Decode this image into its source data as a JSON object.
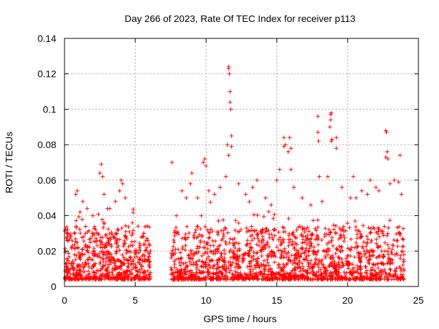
{
  "chart_data": {
    "type": "scatter",
    "title": "Day 266 of 2023, Rate Of TEC Index for receiver p113",
    "xlabel": "GPS time / hours",
    "ylabel": "ROTI / TECUs",
    "xlim": [
      0,
      25
    ],
    "ylim": [
      0,
      0.14
    ],
    "xticks": [
      0,
      5,
      10,
      15,
      20,
      25
    ],
    "xtick_labels": [
      "0",
      "5",
      "10",
      "15",
      "20",
      "25"
    ],
    "yticks": [
      0,
      0.02,
      0.04,
      0.06,
      0.08,
      0.1,
      0.12,
      0.14
    ],
    "ytick_labels": [
      "0",
      "0.02",
      "0.04",
      "0.06",
      "0.08",
      "0.1",
      "0.12",
      "0.14"
    ],
    "grid": true,
    "marker": "+",
    "color": "#ff0000",
    "data_gap_hours": [
      6.1,
      7.5
    ],
    "series": [
      {
        "name": "ROTI",
        "points": [
          [
            0.2,
            0.028
          ],
          [
            0.5,
            0.022
          ],
          [
            0.8,
            0.052
          ],
          [
            0.9,
            0.054
          ],
          [
            1.1,
            0.042
          ],
          [
            1.3,
            0.048
          ],
          [
            1.6,
            0.044
          ],
          [
            2.0,
            0.04
          ],
          [
            2.5,
            0.064
          ],
          [
            2.6,
            0.069
          ],
          [
            2.7,
            0.062
          ],
          [
            2.8,
            0.052
          ],
          [
            3.2,
            0.044
          ],
          [
            3.6,
            0.048
          ],
          [
            3.9,
            0.054
          ],
          [
            4.0,
            0.06
          ],
          [
            4.1,
            0.058
          ],
          [
            4.3,
            0.05
          ],
          [
            4.8,
            0.036
          ],
          [
            5.2,
            0.034
          ],
          [
            5.6,
            0.03
          ],
          [
            5.9,
            0.026
          ],
          [
            7.6,
            0.07
          ],
          [
            7.9,
            0.04
          ],
          [
            8.3,
            0.054
          ],
          [
            8.6,
            0.05
          ],
          [
            8.9,
            0.058
          ],
          [
            9.0,
            0.064
          ],
          [
            9.4,
            0.05
          ],
          [
            9.8,
            0.07
          ],
          [
            9.9,
            0.072
          ],
          [
            10.0,
            0.068
          ],
          [
            10.2,
            0.054
          ],
          [
            10.6,
            0.052
          ],
          [
            11.0,
            0.056
          ],
          [
            11.4,
            0.062
          ],
          [
            11.5,
            0.08
          ],
          [
            11.6,
            0.123
          ],
          [
            11.6,
            0.124
          ],
          [
            11.65,
            0.12
          ],
          [
            11.7,
            0.11
          ],
          [
            11.7,
            0.104
          ],
          [
            11.75,
            0.1
          ],
          [
            11.8,
            0.085
          ],
          [
            11.8,
            0.079
          ],
          [
            11.6,
            0.074
          ],
          [
            12.3,
            0.058
          ],
          [
            12.8,
            0.052
          ],
          [
            13.3,
            0.056
          ],
          [
            13.6,
            0.06
          ],
          [
            14.2,
            0.05
          ],
          [
            14.6,
            0.046
          ],
          [
            15.0,
            0.06
          ],
          [
            15.2,
            0.066
          ],
          [
            15.5,
            0.079
          ],
          [
            15.6,
            0.08
          ],
          [
            15.5,
            0.084
          ],
          [
            15.8,
            0.076
          ],
          [
            15.9,
            0.084
          ],
          [
            16.0,
            0.078
          ],
          [
            16.0,
            0.066
          ],
          [
            16.2,
            0.056
          ],
          [
            16.8,
            0.05
          ],
          [
            17.4,
            0.046
          ],
          [
            17.9,
            0.096
          ],
          [
            17.9,
            0.087
          ],
          [
            17.95,
            0.082
          ],
          [
            18.0,
            0.062
          ],
          [
            18.2,
            0.048
          ],
          [
            18.6,
            0.062
          ],
          [
            18.8,
            0.097
          ],
          [
            18.85,
            0.098
          ],
          [
            18.8,
            0.094
          ],
          [
            18.75,
            0.09
          ],
          [
            18.9,
            0.083
          ],
          [
            18.85,
            0.082
          ],
          [
            19.2,
            0.084
          ],
          [
            19.2,
            0.078
          ],
          [
            19.6,
            0.056
          ],
          [
            20.2,
            0.05
          ],
          [
            20.4,
            0.062
          ],
          [
            20.6,
            0.05
          ],
          [
            21.0,
            0.054
          ],
          [
            21.4,
            0.052
          ],
          [
            21.6,
            0.06
          ],
          [
            22.0,
            0.056
          ],
          [
            22.2,
            0.054
          ],
          [
            22.7,
            0.088
          ],
          [
            22.75,
            0.087
          ],
          [
            22.8,
            0.076
          ],
          [
            22.7,
            0.073
          ],
          [
            22.85,
            0.072
          ],
          [
            23.0,
            0.058
          ],
          [
            23.3,
            0.06
          ],
          [
            23.6,
            0.059
          ],
          [
            23.7,
            0.074
          ],
          [
            23.8,
            0.052
          ]
        ]
      }
    ]
  }
}
